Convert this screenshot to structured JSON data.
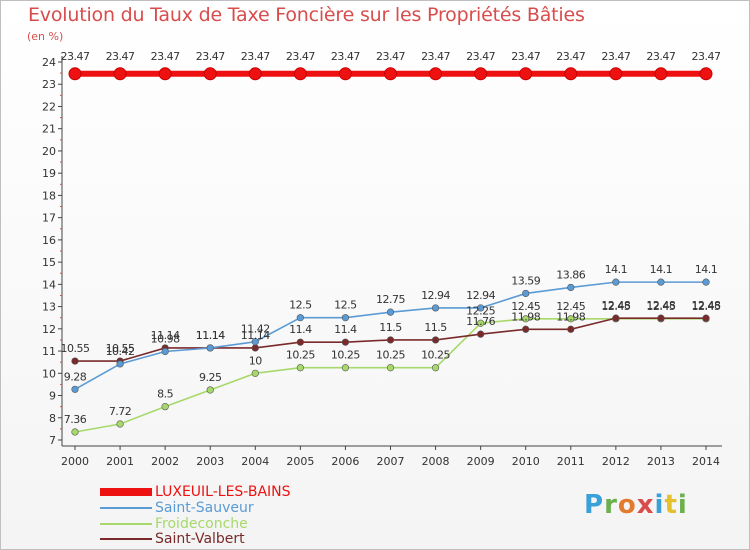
{
  "title": "Evolution du Taux de Taxe Foncière sur les Propriétés Bâties",
  "unit": "(en %)",
  "logo": [
    "P",
    "r",
    "o",
    "x",
    "i",
    "t",
    "i"
  ],
  "logo_colors": [
    "#3aa0d8",
    "#6ab04c",
    "#e37b2c",
    "#d94c4c",
    "#3aa0d8",
    "#e3c02c",
    "#6ab04c"
  ],
  "chart_data": {
    "type": "line",
    "x": [
      "2000",
      "2001",
      "2002",
      "2003",
      "2004",
      "2005",
      "2006",
      "2007",
      "2008",
      "2009",
      "2010",
      "2011",
      "2012",
      "2013",
      "2014"
    ],
    "ylim": [
      7,
      24
    ],
    "yticks": [
      "7",
      "8",
      "9",
      "10",
      "11",
      "12",
      "13",
      "14",
      "15",
      "16",
      "17",
      "18",
      "19",
      "20",
      "21",
      "22",
      "23",
      "24"
    ],
    "grid": false,
    "legend": "bottom-left",
    "series": [
      {
        "name": "LUXEUIL-LES-BAINS",
        "color": "#ee1111",
        "values": [
          23.47,
          23.47,
          23.47,
          23.47,
          23.47,
          23.47,
          23.47,
          23.47,
          23.47,
          23.47,
          23.47,
          23.47,
          23.47,
          23.47,
          23.47
        ],
        "labels": [
          "23.47",
          "23.47",
          "23.47",
          "23.47",
          "23.47",
          "23.47",
          "23.47",
          "23.47",
          "23.47",
          "23.47",
          "23.47",
          "23.47",
          "23.47",
          "23.47",
          "23.47"
        ]
      },
      {
        "name": "Saint-Sauveur",
        "color": "#5b9bd5",
        "values": [
          9.28,
          10.42,
          10.98,
          11.14,
          11.42,
          12.5,
          12.5,
          12.75,
          12.94,
          12.94,
          13.59,
          13.86,
          14.1,
          14.1,
          14.1
        ],
        "labels": [
          "9.28",
          "10.42",
          "10.98",
          "11.14",
          "11.42",
          "12.5",
          "12.5",
          "12.75",
          "12.94",
          "12.94",
          "13.59",
          "13.86",
          "14.1",
          "14.1",
          "14.1"
        ]
      },
      {
        "name": "Froideconche",
        "color": "#a6d96a",
        "values": [
          7.36,
          7.72,
          8.5,
          9.25,
          10,
          10.25,
          10.25,
          10.25,
          10.25,
          12.25,
          12.45,
          12.45,
          12.45,
          12.45,
          12.45
        ],
        "labels": [
          "7.36",
          "7.72",
          "8.5",
          "9.25",
          "10",
          "10.25",
          "10.25",
          "10.25",
          "10.25",
          "12.25",
          "12.45",
          "12.45",
          "12.45",
          "12.45",
          "12.45"
        ]
      },
      {
        "name": "Saint-Valbert",
        "color": "#7a2a2a",
        "values": [
          10.55,
          10.55,
          11.14,
          11.14,
          11.14,
          11.4,
          11.4,
          11.5,
          11.5,
          11.76,
          11.98,
          11.98,
          12.48,
          12.48,
          12.48
        ],
        "labels": [
          "10.55",
          "10.55",
          "11.14",
          "11.14",
          "11.14",
          "11.4",
          "11.4",
          "11.5",
          "11.5",
          "11.76",
          "11.98",
          "11.98",
          "12.48",
          "12.48",
          "12.48"
        ]
      }
    ]
  }
}
